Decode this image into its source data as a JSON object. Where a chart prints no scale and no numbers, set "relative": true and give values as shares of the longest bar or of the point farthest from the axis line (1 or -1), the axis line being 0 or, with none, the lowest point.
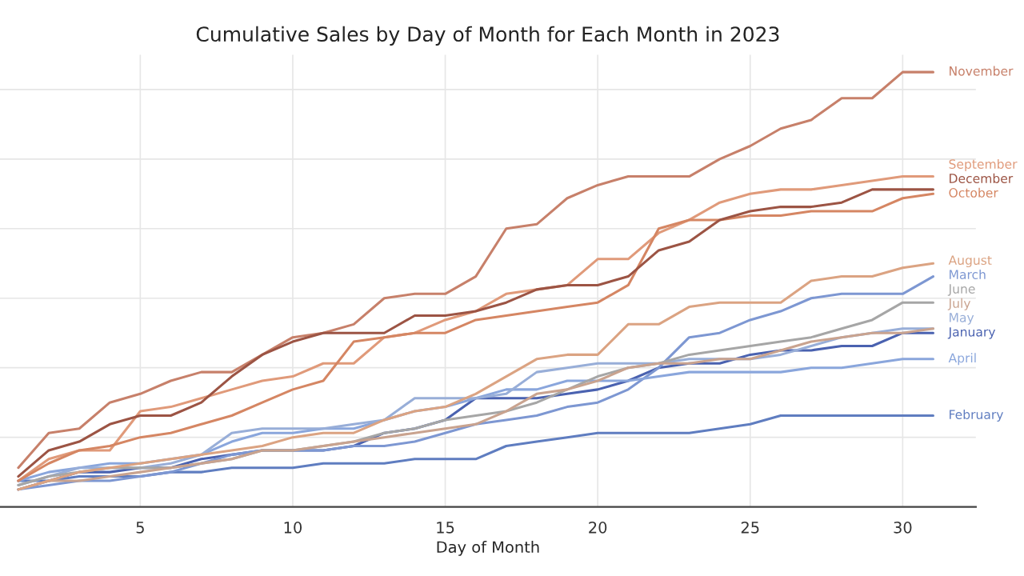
{
  "chart_data": {
    "type": "line",
    "title": "Cumulative Sales by Day of Month for Each Month in 2023",
    "xlabel": "Day of Month",
    "relative": true,
    "grid": true,
    "legend": false,
    "line_style": "solid",
    "marker": "none",
    "x": [
      1,
      2,
      3,
      4,
      5,
      6,
      7,
      8,
      9,
      10,
      11,
      12,
      13,
      14,
      15,
      16,
      17,
      18,
      19,
      20,
      21,
      22,
      23,
      24,
      25,
      26,
      27,
      28,
      29,
      30,
      31
    ],
    "xlim": [
      0.4,
      32.4
    ],
    "xticks": [
      5,
      10,
      15,
      20,
      25,
      30
    ],
    "series": [
      {
        "name": "January",
        "color": "#4a62b0",
        "values": [
          0.04,
          0.06,
          0.08,
          0.08,
          0.09,
          0.09,
          0.11,
          0.12,
          0.13,
          0.13,
          0.13,
          0.14,
          0.17,
          0.18,
          0.2,
          0.25,
          0.25,
          0.25,
          0.26,
          0.27,
          0.29,
          0.32,
          0.33,
          0.33,
          0.35,
          0.36,
          0.36,
          0.37,
          0.37,
          0.4,
          0.4
        ]
      },
      {
        "name": "February",
        "color": "#5f7dc0",
        "values": [
          0.06,
          0.06,
          0.07,
          0.07,
          0.07,
          0.08,
          0.08,
          0.09,
          0.09,
          0.09,
          0.1,
          0.1,
          0.1,
          0.11,
          0.11,
          0.11,
          0.14,
          0.15,
          0.16,
          0.17,
          0.17,
          0.17,
          0.17,
          0.18,
          0.19,
          0.21,
          0.21,
          0.21,
          0.21,
          0.21,
          0.21
        ]
      },
      {
        "name": "March",
        "color": "#7d97d2",
        "values": [
          0.04,
          0.05,
          0.06,
          0.06,
          0.07,
          0.08,
          0.1,
          0.12,
          0.13,
          0.13,
          0.13,
          0.14,
          0.14,
          0.15,
          0.17,
          0.19,
          0.2,
          0.21,
          0.23,
          0.24,
          0.27,
          0.32,
          0.39,
          0.4,
          0.43,
          0.45,
          0.48,
          0.49,
          0.49,
          0.49,
          0.53
        ]
      },
      {
        "name": "April",
        "color": "#8aa6dc",
        "values": [
          0.06,
          0.08,
          0.09,
          0.1,
          0.1,
          0.11,
          0.12,
          0.15,
          0.17,
          0.17,
          0.18,
          0.18,
          0.2,
          0.22,
          0.23,
          0.25,
          0.27,
          0.27,
          0.29,
          0.29,
          0.29,
          0.3,
          0.31,
          0.31,
          0.31,
          0.31,
          0.32,
          0.32,
          0.33,
          0.34,
          0.34
        ]
      },
      {
        "name": "May",
        "color": "#98aed8",
        "values": [
          0.05,
          0.07,
          0.09,
          0.09,
          0.09,
          0.1,
          0.12,
          0.17,
          0.18,
          0.18,
          0.18,
          0.19,
          0.2,
          0.25,
          0.25,
          0.25,
          0.26,
          0.31,
          0.32,
          0.33,
          0.33,
          0.33,
          0.34,
          0.34,
          0.34,
          0.35,
          0.37,
          0.39,
          0.4,
          0.41,
          0.41
        ]
      },
      {
        "name": "June",
        "color": "#a6a6a6",
        "values": [
          0.05,
          0.07,
          0.08,
          0.09,
          0.09,
          0.09,
          0.1,
          0.11,
          0.13,
          0.13,
          0.14,
          0.15,
          0.17,
          0.18,
          0.2,
          0.21,
          0.22,
          0.24,
          0.27,
          0.3,
          0.32,
          0.33,
          0.35,
          0.36,
          0.37,
          0.38,
          0.39,
          0.41,
          0.43,
          0.47,
          0.47
        ]
      },
      {
        "name": "July",
        "color": "#c9a38f",
        "values": [
          0.04,
          0.06,
          0.06,
          0.07,
          0.08,
          0.09,
          0.1,
          0.11,
          0.13,
          0.13,
          0.14,
          0.15,
          0.16,
          0.17,
          0.18,
          0.19,
          0.22,
          0.26,
          0.27,
          0.29,
          0.32,
          0.33,
          0.33,
          0.34,
          0.34,
          0.36,
          0.38,
          0.39,
          0.4,
          0.4,
          0.41
        ]
      },
      {
        "name": "August",
        "color": "#dba382",
        "values": [
          0.04,
          0.06,
          0.08,
          0.09,
          0.1,
          0.11,
          0.12,
          0.13,
          0.14,
          0.16,
          0.17,
          0.17,
          0.2,
          0.22,
          0.23,
          0.26,
          0.3,
          0.34,
          0.35,
          0.35,
          0.42,
          0.42,
          0.46,
          0.47,
          0.47,
          0.47,
          0.52,
          0.53,
          0.53,
          0.55,
          0.56
        ]
      },
      {
        "name": "September",
        "color": "#e09a7a",
        "values": [
          0.06,
          0.11,
          0.13,
          0.13,
          0.22,
          0.23,
          0.25,
          0.27,
          0.29,
          0.3,
          0.33,
          0.33,
          0.39,
          0.4,
          0.43,
          0.45,
          0.49,
          0.5,
          0.51,
          0.57,
          0.57,
          0.63,
          0.66,
          0.7,
          0.72,
          0.73,
          0.73,
          0.74,
          0.75,
          0.76,
          0.76
        ]
      },
      {
        "name": "October",
        "color": "#d58663",
        "values": [
          0.06,
          0.1,
          0.13,
          0.14,
          0.16,
          0.17,
          0.19,
          0.21,
          0.24,
          0.27,
          0.29,
          0.38,
          0.39,
          0.4,
          0.4,
          0.43,
          0.44,
          0.45,
          0.46,
          0.47,
          0.51,
          0.64,
          0.66,
          0.66,
          0.67,
          0.67,
          0.68,
          0.68,
          0.68,
          0.71,
          0.72
        ]
      },
      {
        "name": "November",
        "color": "#c7806a",
        "values": [
          0.09,
          0.17,
          0.18,
          0.24,
          0.26,
          0.29,
          0.31,
          0.31,
          0.35,
          0.39,
          0.4,
          0.42,
          0.48,
          0.49,
          0.49,
          0.53,
          0.64,
          0.65,
          0.71,
          0.74,
          0.76,
          0.76,
          0.76,
          0.8,
          0.83,
          0.87,
          0.89,
          0.94,
          0.94,
          1.0,
          1.0
        ]
      },
      {
        "name": "December",
        "color": "#9c5444",
        "values": [
          0.07,
          0.13,
          0.15,
          0.19,
          0.21,
          0.21,
          0.24,
          0.3,
          0.35,
          0.38,
          0.4,
          0.4,
          0.4,
          0.44,
          0.44,
          0.45,
          0.47,
          0.5,
          0.51,
          0.51,
          0.53,
          0.59,
          0.61,
          0.66,
          0.68,
          0.69,
          0.69,
          0.7,
          0.73,
          0.73,
          0.73
        ]
      }
    ]
  }
}
